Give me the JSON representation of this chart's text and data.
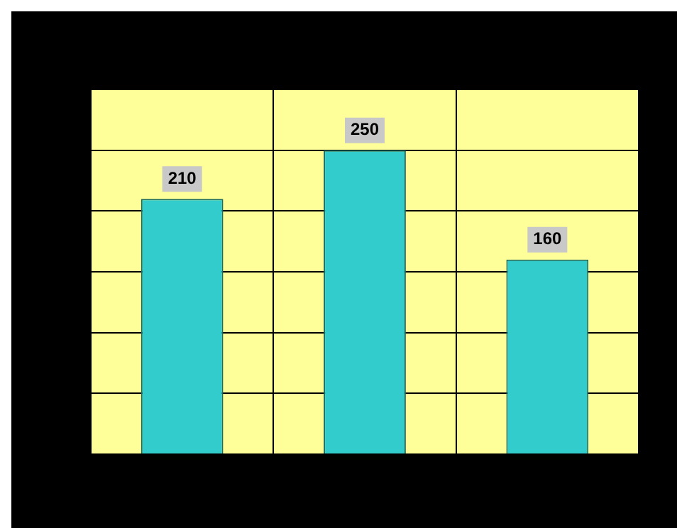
{
  "chart_data": {
    "type": "bar",
    "categories": [
      null,
      null,
      null
    ],
    "values": [
      210,
      250,
      160
    ],
    "color": "#33cccc",
    "ylim": [
      0,
      300
    ],
    "yticks": [
      {
        "value": 0,
        "label": null
      },
      {
        "value": 50,
        "label": null
      },
      {
        "value": 100,
        "label": null
      },
      {
        "value": 150,
        "label": null
      },
      {
        "value": 200,
        "label": null
      },
      {
        "value": 250,
        "label": null
      },
      {
        "value": 300,
        "label": null
      }
    ],
    "tick_labels": false,
    "grid": true,
    "data_labels": true
  }
}
